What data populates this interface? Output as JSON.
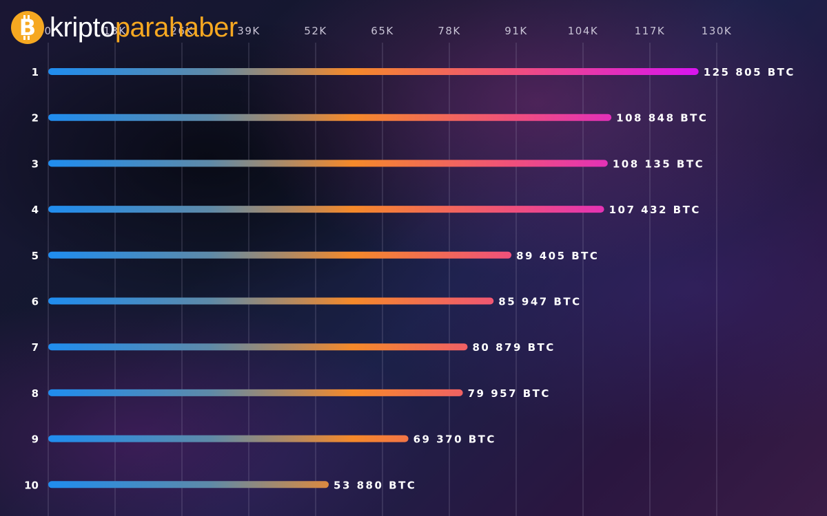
{
  "logo": {
    "part1": "kripto",
    "part2": "parahaber",
    "icon": "bitcoin-coin-icon"
  },
  "chart_data": {
    "type": "bar",
    "orientation": "horizontal",
    "title": "",
    "xlabel": "",
    "ylabel": "",
    "categories": [
      "1",
      "2",
      "3",
      "4",
      "5",
      "6",
      "7",
      "8",
      "9",
      "10"
    ],
    "values": [
      125805,
      108848,
      108135,
      107432,
      89405,
      85947,
      80879,
      79957,
      69370,
      53880
    ],
    "data_labels": [
      "125 805 BTC",
      "108 848 BTC",
      "108 135 BTC",
      "107 432 BTC",
      "89 405 BTC",
      "85 947 BTC",
      "80 879 BTC",
      "79 957 BTC",
      "69 370 BTC",
      "53 880 BTC"
    ],
    "xlim": [
      0,
      130000
    ],
    "xticks": [
      0,
      13000,
      26000,
      39000,
      52000,
      65000,
      78000,
      91000,
      104000,
      117000,
      130000
    ],
    "xtick_labels": [
      "0",
      "13K",
      "26K",
      "39K",
      "52K",
      "65K",
      "78K",
      "91K",
      "104K",
      "117K",
      "130K"
    ],
    "grid": true,
    "legend": "none",
    "colors": {
      "bar_start": "#1f8df0",
      "bar_mid": "#f5892a",
      "bar_end": "#d915ee",
      "text": "#ffffff",
      "tick": "#c9c4d6",
      "grid": "#a9a3c0"
    }
  }
}
